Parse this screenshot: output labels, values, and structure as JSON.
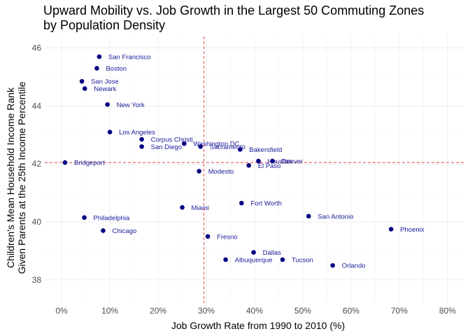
{
  "chart_data": {
    "type": "scatter",
    "title_lines": [
      "Upward Mobility vs. Job Growth in the Largest 50 Commuting Zones",
      "by Population Density"
    ],
    "xlabel": "Job Growth Rate from 1990 to 2010 (%)",
    "ylabel_lines": [
      "Children's Mean Household Income Rank",
      "Given Parents at the 25th Income Percentile"
    ],
    "xlim": [
      -3.5,
      83.5
    ],
    "ylim": [
      37.2,
      46.4
    ],
    "x_ticks": [
      0,
      10,
      20,
      30,
      40,
      50,
      60,
      70,
      80
    ],
    "x_tick_labels": [
      "0%",
      "10%",
      "20%",
      "30%",
      "40%",
      "50%",
      "60%",
      "70%",
      "80%"
    ],
    "y_ticks": [
      38,
      40,
      42,
      44,
      46
    ],
    "y_tick_labels": [
      "38",
      "40",
      "42",
      "44",
      "46"
    ],
    "reference_lines": {
      "vertical_x": 29.5,
      "horizontal_y": 42.05,
      "color": "#e34a4a",
      "style": "dashed"
    },
    "grid": true,
    "point_color": "#000080",
    "label_color": "#1a1a9a",
    "points": [
      {
        "label": "San Francisco",
        "x": 7.8,
        "y": 45.7
      },
      {
        "label": "Boston",
        "x": 7.3,
        "y": 45.3
      },
      {
        "label": "San Jose",
        "x": 4.2,
        "y": 44.85
      },
      {
        "label": "Newark",
        "x": 4.8,
        "y": 44.6
      },
      {
        "label": "New York",
        "x": 9.5,
        "y": 44.05
      },
      {
        "label": "Los Angeles",
        "x": 10.0,
        "y": 43.1
      },
      {
        "label": "Corpus Christi",
        "x": 16.6,
        "y": 42.85
      },
      {
        "label": "San Diego",
        "x": 16.6,
        "y": 42.6
      },
      {
        "label": "Washington DC",
        "x": 25.4,
        "y": 42.7
      },
      {
        "label": "Sacramento",
        "x": 28.8,
        "y": 42.6
      },
      {
        "label": "Bakersfield",
        "x": 37.0,
        "y": 42.5
      },
      {
        "label": "Houston",
        "x": 40.8,
        "y": 42.1
      },
      {
        "label": "Denver",
        "x": 43.7,
        "y": 42.1
      },
      {
        "label": "El Paso",
        "x": 38.8,
        "y": 41.95
      },
      {
        "label": "Bridgeport",
        "x": 0.7,
        "y": 42.05
      },
      {
        "label": "Modesto",
        "x": 28.5,
        "y": 41.75
      },
      {
        "label": "Fort Worth",
        "x": 37.3,
        "y": 40.65
      },
      {
        "label": "Miami",
        "x": 25.0,
        "y": 40.5
      },
      {
        "label": "San Antonio",
        "x": 51.2,
        "y": 40.2
      },
      {
        "label": "Philadelphia",
        "x": 4.7,
        "y": 40.15
      },
      {
        "label": "Phoenix",
        "x": 68.3,
        "y": 39.75
      },
      {
        "label": "Chicago",
        "x": 8.6,
        "y": 39.7
      },
      {
        "label": "Fresno",
        "x": 30.3,
        "y": 39.5
      },
      {
        "label": "Dallas",
        "x": 39.8,
        "y": 38.95
      },
      {
        "label": "Albuquerque",
        "x": 34.0,
        "y": 38.7
      },
      {
        "label": "Tucson",
        "x": 45.8,
        "y": 38.7
      },
      {
        "label": "Orlando",
        "x": 56.2,
        "y": 38.5
      }
    ]
  }
}
